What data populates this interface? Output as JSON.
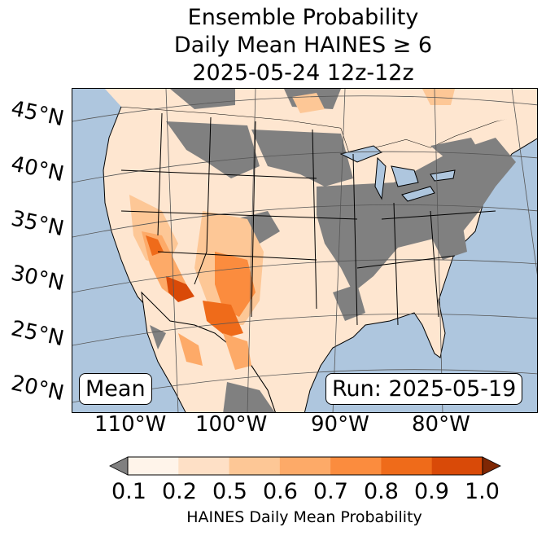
{
  "title": {
    "line1": "Ensemble Probability",
    "line2": "Daily Mean HAINES ≥ 6",
    "line3": "2025-05-24 12z-12z"
  },
  "map": {
    "lat_labels": [
      "45°N",
      "40°N",
      "35°N",
      "30°N",
      "25°N",
      "20°N"
    ],
    "lon_labels": [
      "110°W",
      "100°W",
      "90°W",
      "80°W"
    ],
    "left_box": "Mean",
    "right_box": "Run: 2025-05-19",
    "colors": {
      "ocean": "#aec6de",
      "nodata_gray": "#808080",
      "land_low": "#fff2e6"
    }
  },
  "colorbar": {
    "ticks": [
      "0.1",
      "0.2",
      "0.5",
      "0.6",
      "0.7",
      "0.8",
      "0.9",
      "1.0"
    ],
    "colors": [
      "#fff4ea",
      "#fee0c6",
      "#fdc796",
      "#fdaa68",
      "#fb8c3e",
      "#ef6b1a",
      "#d94a08"
    ],
    "under_color": "#808080",
    "over_color": "#7f2704",
    "label": "HAINES Daily Mean Probability"
  }
}
